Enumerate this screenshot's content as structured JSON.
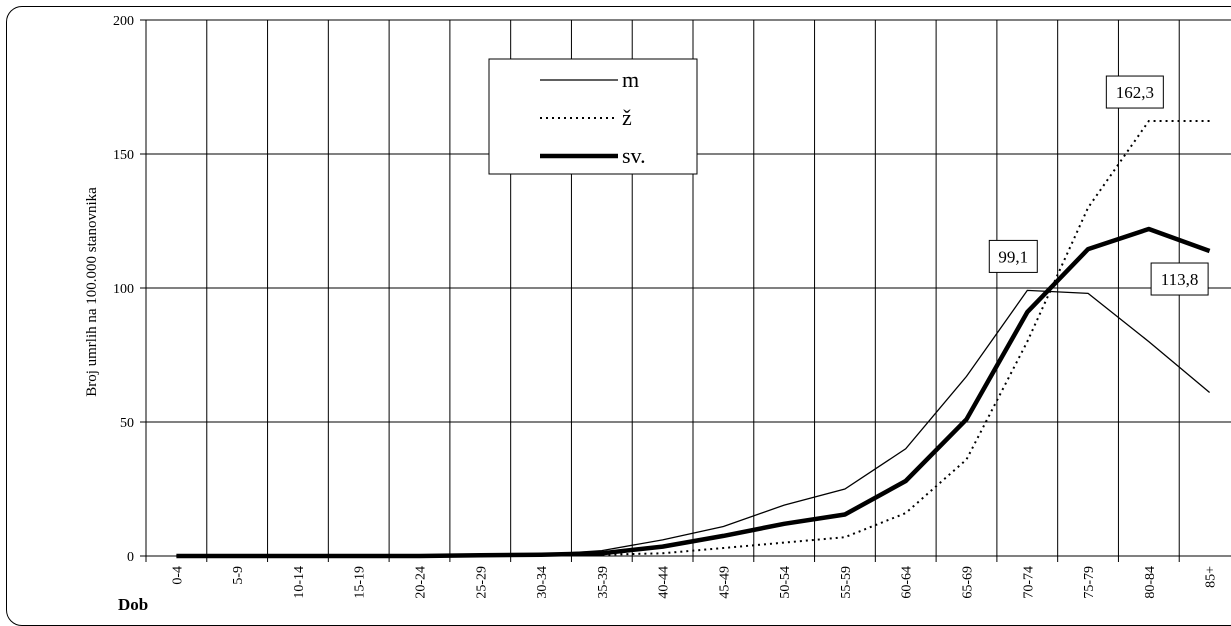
{
  "chart_data": {
    "type": "line",
    "ylabel": "Broj umrlih na 100.000 stanovnika",
    "xlabel": "Dob",
    "ylim": [
      0,
      200
    ],
    "yticks": [
      0,
      50,
      100,
      150,
      200
    ],
    "grid": true,
    "legend_position": "top-center",
    "categories": [
      "0-4",
      "5-9",
      "10-14",
      "15-19",
      "20-24",
      "25-29",
      "30-34",
      "35-39",
      "40-44",
      "45-49",
      "50-54",
      "55-59",
      "60-64",
      "65-69",
      "70-74",
      "75-79",
      "80-84",
      "85+"
    ],
    "series": [
      {
        "name": "m",
        "style": "thin",
        "values": [
          0,
          0,
          0,
          0,
          0,
          0.5,
          0.5,
          2,
          6,
          11,
          19,
          25,
          40,
          67,
          99.1,
          98,
          80,
          61
        ]
      },
      {
        "name": "ž",
        "style": "dotted",
        "values": [
          0,
          0,
          0,
          0,
          0,
          0,
          0.3,
          0.5,
          1,
          3,
          5,
          7,
          16,
          36,
          80,
          130,
          162.3,
          162.3
        ]
      },
      {
        "name": "sv.",
        "style": "thick",
        "values": [
          0,
          0,
          0,
          0,
          0,
          0.3,
          0.5,
          1,
          3.5,
          7.5,
          12,
          15.5,
          28,
          51,
          91,
          114.5,
          122,
          113.8
        ]
      }
    ],
    "annotations": [
      {
        "text": "99,1",
        "series": "m",
        "index": 14
      },
      {
        "text": "162,3",
        "series": "ž",
        "index": 16
      },
      {
        "text": "113,8",
        "series": "sv.",
        "index": 17
      }
    ]
  }
}
